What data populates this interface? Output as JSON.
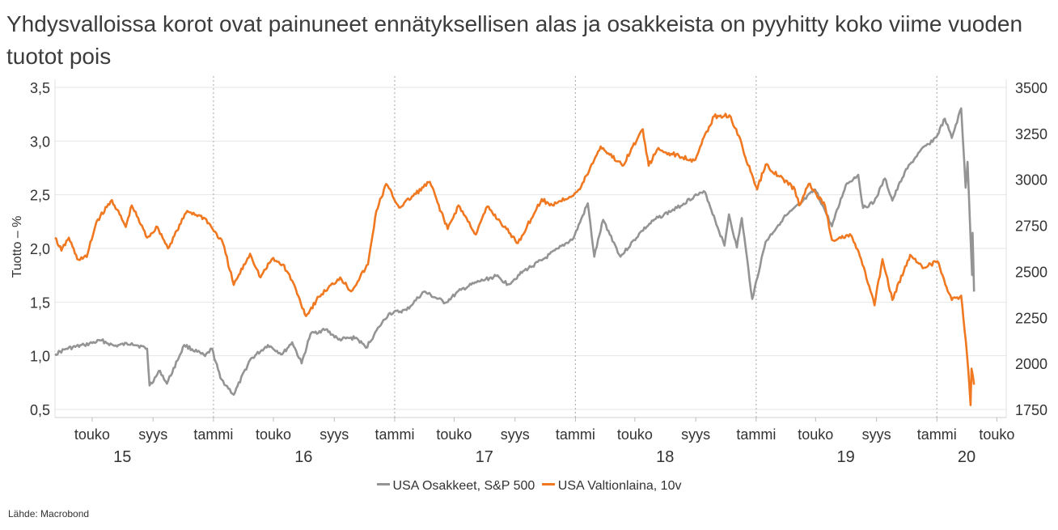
{
  "title": "Yhdysvalloissa korot ovat painuneet ennätyksellisen alas ja osakkeista on pyyhitty koko viime vuoden tuotot pois",
  "source": "Lähde: Macrobond",
  "colors": {
    "sp500": "#949494",
    "bond10y": "#f07820",
    "grid": "#e6e6e6",
    "vline": "#b4b4b4"
  },
  "chart_data": {
    "type": "line",
    "xlabel": "",
    "ylabel": "Tuotto – %",
    "ylim": [
      0.5,
      3.5
    ],
    "y2lim": [
      1750,
      3500
    ],
    "yticks": [
      "0,5",
      "1,0",
      "1,5",
      "2,0",
      "2,5",
      "3,0",
      "3,5"
    ],
    "y2ticks": [
      "1750",
      "2000",
      "2250",
      "2500",
      "2750",
      "3000",
      "3250",
      "3500"
    ],
    "xlim": [
      "2015-02-15",
      "2020-05-20"
    ],
    "xticks": [
      {
        "date": "2015-05-01",
        "label": "touko"
      },
      {
        "date": "2015-09-01",
        "label": "syys"
      },
      {
        "date": "2016-01-01",
        "label": "tammi"
      },
      {
        "date": "2016-05-01",
        "label": "touko"
      },
      {
        "date": "2016-09-01",
        "label": "syys"
      },
      {
        "date": "2017-01-01",
        "label": "tammi"
      },
      {
        "date": "2017-05-01",
        "label": "touko"
      },
      {
        "date": "2017-09-01",
        "label": "syys"
      },
      {
        "date": "2018-01-01",
        "label": "tammi"
      },
      {
        "date": "2018-05-01",
        "label": "touko"
      },
      {
        "date": "2018-09-01",
        "label": "syys"
      },
      {
        "date": "2019-01-01",
        "label": "tammi"
      },
      {
        "date": "2019-05-01",
        "label": "touko"
      },
      {
        "date": "2019-09-01",
        "label": "syys"
      },
      {
        "date": "2020-01-01",
        "label": "tammi"
      },
      {
        "date": "2020-05-01",
        "label": "touko"
      }
    ],
    "year_labels": [
      {
        "date": "2015-07-01",
        "label": "15"
      },
      {
        "date": "2016-07-01",
        "label": "16"
      },
      {
        "date": "2017-07-01",
        "label": "17"
      },
      {
        "date": "2018-07-01",
        "label": "18"
      },
      {
        "date": "2019-07-01",
        "label": "19"
      },
      {
        "date": "2020-03-01",
        "label": "20"
      }
    ],
    "year_dividers": [
      "2016-01-01",
      "2017-01-01",
      "2018-01-01",
      "2019-01-01",
      "2020-01-01"
    ],
    "legend_position": "bottom",
    "series": [
      {
        "name": "USA Osakkeet, S&P 500",
        "axis": "right",
        "color": "#949494",
        "points": [
          [
            "2015-02-15",
            2050
          ],
          [
            "2015-03-10",
            2080
          ],
          [
            "2015-04-15",
            2100
          ],
          [
            "2015-05-20",
            2125
          ],
          [
            "2015-06-15",
            2095
          ],
          [
            "2015-07-20",
            2110
          ],
          [
            "2015-08-20",
            2080
          ],
          [
            "2015-08-25",
            1880
          ],
          [
            "2015-09-15",
            1960
          ],
          [
            "2015-09-29",
            1890
          ],
          [
            "2015-11-03",
            2100
          ],
          [
            "2015-12-15",
            2040
          ],
          [
            "2015-12-29",
            2080
          ],
          [
            "2016-01-15",
            1920
          ],
          [
            "2016-02-11",
            1830
          ],
          [
            "2016-03-15",
            2020
          ],
          [
            "2016-04-20",
            2100
          ],
          [
            "2016-05-19",
            2050
          ],
          [
            "2016-06-08",
            2115
          ],
          [
            "2016-06-27",
            2000
          ],
          [
            "2016-07-15",
            2160
          ],
          [
            "2016-08-15",
            2185
          ],
          [
            "2016-09-09",
            2130
          ],
          [
            "2016-10-15",
            2140
          ],
          [
            "2016-11-04",
            2085
          ],
          [
            "2016-12-01",
            2200
          ],
          [
            "2016-12-20",
            2270
          ],
          [
            "2017-01-25",
            2290
          ],
          [
            "2017-03-01",
            2390
          ],
          [
            "2017-04-13",
            2330
          ],
          [
            "2017-05-15",
            2400
          ],
          [
            "2017-06-15",
            2440
          ],
          [
            "2017-07-25",
            2475
          ],
          [
            "2017-08-18",
            2430
          ],
          [
            "2017-09-20",
            2505
          ],
          [
            "2017-10-25",
            2560
          ],
          [
            "2017-11-28",
            2625
          ],
          [
            "2017-12-28",
            2680
          ],
          [
            "2018-01-26",
            2870
          ],
          [
            "2018-02-08",
            2580
          ],
          [
            "2018-02-26",
            2780
          ],
          [
            "2018-04-02",
            2580
          ],
          [
            "2018-05-15",
            2720
          ],
          [
            "2018-06-12",
            2785
          ],
          [
            "2018-07-25",
            2845
          ],
          [
            "2018-08-29",
            2910
          ],
          [
            "2018-09-20",
            2930
          ],
          [
            "2018-10-10",
            2780
          ],
          [
            "2018-10-29",
            2640
          ],
          [
            "2018-11-07",
            2810
          ],
          [
            "2018-11-23",
            2630
          ],
          [
            "2018-12-03",
            2790
          ],
          [
            "2018-12-24",
            2350
          ],
          [
            "2019-01-20",
            2660
          ],
          [
            "2019-02-25",
            2790
          ],
          [
            "2019-04-01",
            2870
          ],
          [
            "2019-04-30",
            2945
          ],
          [
            "2019-05-15",
            2860
          ],
          [
            "2019-06-03",
            2745
          ],
          [
            "2019-07-01",
            2970
          ],
          [
            "2019-07-26",
            3025
          ],
          [
            "2019-08-05",
            2845
          ],
          [
            "2019-08-27",
            2875
          ],
          [
            "2019-09-18",
            3005
          ],
          [
            "2019-10-03",
            2885
          ],
          [
            "2019-10-28",
            3040
          ],
          [
            "2019-11-27",
            3150
          ],
          [
            "2019-12-31",
            3230
          ],
          [
            "2020-01-17",
            3330
          ],
          [
            "2020-01-31",
            3225
          ],
          [
            "2020-02-19",
            3386
          ],
          [
            "2020-02-28",
            2955
          ],
          [
            "2020-03-03",
            3095
          ],
          [
            "2020-03-12",
            2480
          ],
          [
            "2020-03-13",
            2710
          ],
          [
            "2020-03-16",
            2390
          ]
        ]
      },
      {
        "name": "USA Valtionlaina, 10v",
        "axis": "left",
        "color": "#f07820",
        "points": [
          [
            "2015-02-15",
            2.1
          ],
          [
            "2015-02-28",
            1.98
          ],
          [
            "2015-03-15",
            2.1
          ],
          [
            "2015-04-01",
            1.9
          ],
          [
            "2015-04-20",
            1.92
          ],
          [
            "2015-05-10",
            2.25
          ],
          [
            "2015-06-10",
            2.45
          ],
          [
            "2015-07-08",
            2.2
          ],
          [
            "2015-07-20",
            2.4
          ],
          [
            "2015-08-20",
            2.1
          ],
          [
            "2015-09-10",
            2.2
          ],
          [
            "2015-10-01",
            2.0
          ],
          [
            "2015-11-09",
            2.35
          ],
          [
            "2015-12-15",
            2.28
          ],
          [
            "2016-01-20",
            2.05
          ],
          [
            "2016-02-11",
            1.66
          ],
          [
            "2016-03-15",
            1.95
          ],
          [
            "2016-04-05",
            1.73
          ],
          [
            "2016-04-28",
            1.9
          ],
          [
            "2016-05-20",
            1.85
          ],
          [
            "2016-06-08",
            1.7
          ],
          [
            "2016-07-06",
            1.37
          ],
          [
            "2016-08-01",
            1.55
          ],
          [
            "2016-09-13",
            1.73
          ],
          [
            "2016-10-05",
            1.6
          ],
          [
            "2016-11-08",
            1.85
          ],
          [
            "2016-11-25",
            2.35
          ],
          [
            "2016-12-15",
            2.6
          ],
          [
            "2017-01-10",
            2.38
          ],
          [
            "2017-03-13",
            2.62
          ],
          [
            "2017-04-18",
            2.18
          ],
          [
            "2017-05-10",
            2.4
          ],
          [
            "2017-06-14",
            2.13
          ],
          [
            "2017-07-07",
            2.39
          ],
          [
            "2017-09-07",
            2.05
          ],
          [
            "2017-10-25",
            2.46
          ],
          [
            "2017-11-10",
            2.4
          ],
          [
            "2017-12-20",
            2.48
          ],
          [
            "2018-01-10",
            2.55
          ],
          [
            "2018-02-21",
            2.95
          ],
          [
            "2018-04-06",
            2.77
          ],
          [
            "2018-05-17",
            3.11
          ],
          [
            "2018-05-29",
            2.77
          ],
          [
            "2018-06-15",
            2.92
          ],
          [
            "2018-08-29",
            2.82
          ],
          [
            "2018-09-10",
            2.95
          ],
          [
            "2018-10-08",
            3.23
          ],
          [
            "2018-11-08",
            3.24
          ],
          [
            "2018-11-27",
            3.05
          ],
          [
            "2018-12-10",
            2.85
          ],
          [
            "2019-01-03",
            2.55
          ],
          [
            "2019-01-20",
            2.78
          ],
          [
            "2019-03-20",
            2.55
          ],
          [
            "2019-03-29",
            2.4
          ],
          [
            "2019-04-17",
            2.6
          ],
          [
            "2019-05-20",
            2.4
          ],
          [
            "2019-06-03",
            2.08
          ],
          [
            "2019-07-12",
            2.12
          ],
          [
            "2019-08-01",
            1.9
          ],
          [
            "2019-08-28",
            1.47
          ],
          [
            "2019-09-13",
            1.9
          ],
          [
            "2019-10-03",
            1.52
          ],
          [
            "2019-11-08",
            1.94
          ],
          [
            "2019-12-06",
            1.82
          ],
          [
            "2020-01-02",
            1.88
          ],
          [
            "2020-01-31",
            1.52
          ],
          [
            "2020-02-19",
            1.56
          ],
          [
            "2020-03-02",
            1.0
          ],
          [
            "2020-03-09",
            0.54
          ],
          [
            "2020-03-11",
            0.88
          ],
          [
            "2020-03-16",
            0.73
          ]
        ]
      }
    ]
  }
}
